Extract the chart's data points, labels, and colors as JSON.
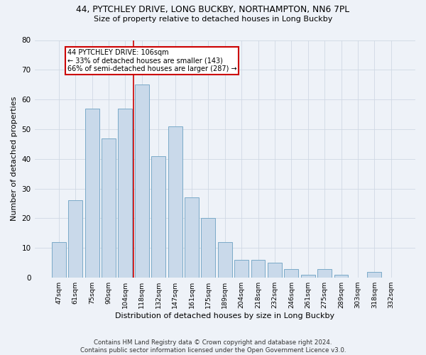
{
  "title1": "44, PYTCHLEY DRIVE, LONG BUCKBY, NORTHAMPTON, NN6 7PL",
  "title2": "Size of property relative to detached houses in Long Buckby",
  "xlabel": "Distribution of detached houses by size in Long Buckby",
  "ylabel": "Number of detached properties",
  "categories": [
    "47sqm",
    "61sqm",
    "75sqm",
    "90sqm",
    "104sqm",
    "118sqm",
    "132sqm",
    "147sqm",
    "161sqm",
    "175sqm",
    "189sqm",
    "204sqm",
    "218sqm",
    "232sqm",
    "246sqm",
    "261sqm",
    "275sqm",
    "289sqm",
    "303sqm",
    "318sqm",
    "332sqm"
  ],
  "values": [
    12,
    26,
    57,
    47,
    57,
    65,
    41,
    51,
    27,
    20,
    12,
    6,
    6,
    5,
    3,
    1,
    3,
    1,
    0,
    2,
    0
  ],
  "bar_color": "#c9d9ea",
  "bar_edge_color": "#7aaac8",
  "background_color": "#eef2f8",
  "grid_color": "#d0d8e4",
  "vline_x": 4.5,
  "vline_color": "#cc0000",
  "annotation_text": "44 PYTCHLEY DRIVE: 106sqm\n← 33% of detached houses are smaller (143)\n66% of semi-detached houses are larger (287) →",
  "annotation_box_color": "#ffffff",
  "annotation_box_edge": "#cc0000",
  "ylim": [
    0,
    80
  ],
  "yticks": [
    0,
    10,
    20,
    30,
    40,
    50,
    60,
    70,
    80
  ],
  "footnote": "Contains HM Land Registry data © Crown copyright and database right 2024.\nContains public sector information licensed under the Open Government Licence v3.0."
}
